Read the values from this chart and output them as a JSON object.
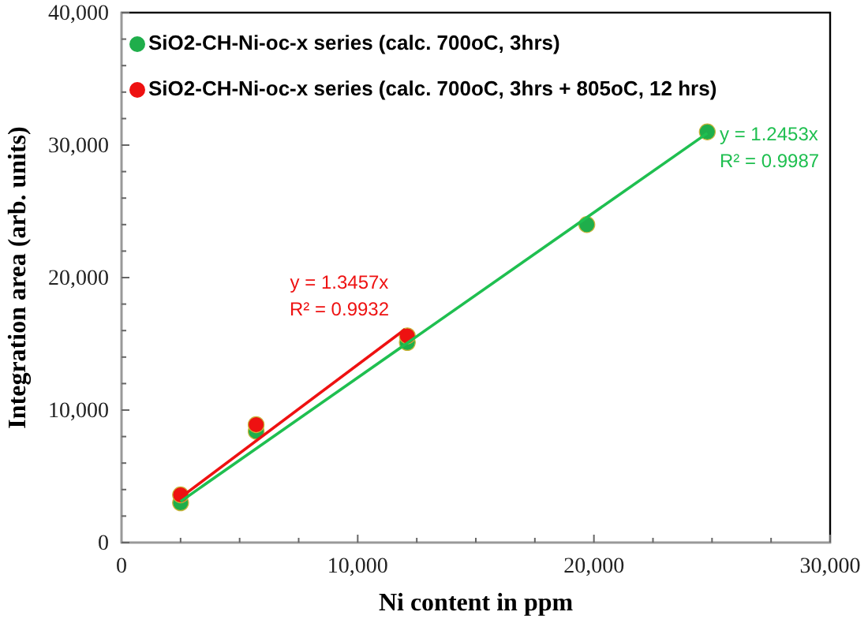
{
  "chart_data": {
    "type": "scatter",
    "xlabel": "Ni content in ppm",
    "ylabel": "Integration area (arb. units)",
    "xlim": [
      0,
      30000
    ],
    "ylim": [
      0,
      40000
    ],
    "xticks": [
      {
        "value": 0,
        "label": "0"
      },
      {
        "value": 2500,
        "label": null
      },
      {
        "value": 5000,
        "label": null
      },
      {
        "value": 7500,
        "label": null
      },
      {
        "value": 10000,
        "label": "10,000"
      },
      {
        "value": 12500,
        "label": null
      },
      {
        "value": 15000,
        "label": null
      },
      {
        "value": 17500,
        "label": null
      },
      {
        "value": 20000,
        "label": "20,000"
      },
      {
        "value": 22500,
        "label": null
      },
      {
        "value": 25000,
        "label": null
      },
      {
        "value": 27500,
        "label": null
      },
      {
        "value": 30000,
        "label": "30,000"
      }
    ],
    "yticks": [
      {
        "value": 0,
        "label": "0"
      },
      {
        "value": 2000,
        "label": null
      },
      {
        "value": 4000,
        "label": null
      },
      {
        "value": 6000,
        "label": null
      },
      {
        "value": 8000,
        "label": null
      },
      {
        "value": 10000,
        "label": "10,000"
      },
      {
        "value": 12000,
        "label": null
      },
      {
        "value": 14000,
        "label": null
      },
      {
        "value": 16000,
        "label": null
      },
      {
        "value": 18000,
        "label": null
      },
      {
        "value": 20000,
        "label": "20,000"
      },
      {
        "value": 22000,
        "label": null
      },
      {
        "value": 24000,
        "label": null
      },
      {
        "value": 26000,
        "label": null
      },
      {
        "value": 28000,
        "label": null
      },
      {
        "value": 30000,
        "label": "30,000"
      },
      {
        "value": 32000,
        "label": null
      },
      {
        "value": 34000,
        "label": null
      },
      {
        "value": 36000,
        "label": null
      },
      {
        "value": 38000,
        "label": null
      },
      {
        "value": 40000,
        "label": "40,000"
      }
    ],
    "grid": false,
    "legend": "top left",
    "marker": "circle",
    "series": [
      {
        "name": "SiO2-CH-Ni-oc-x  series (calc. 700oC, 3hrs)",
        "color": "#1fae4b",
        "x": [
          2500,
          5700,
          12100,
          19700,
          24800
        ],
        "values": [
          3000,
          8400,
          15100,
          24000,
          31000
        ]
      },
      {
        "name": "SiO2-CH-Ni-oc-x  series (calc. 700oC, 3hrs + 805oC, 12 hrs)",
        "color": "#ee1111",
        "x": [
          2500,
          5700,
          12100
        ],
        "values": [
          3600,
          8900,
          15600
        ]
      },
      {
        "type": "line",
        "color": "#1fbf50",
        "marker": "none",
        "x": [
          2500,
          24800
        ],
        "values": [
          3100,
          30900
        ]
      },
      {
        "type": "line",
        "color": "#ee1111",
        "marker": "none",
        "x": [
          2500,
          12000
        ],
        "values": [
          3400,
          16100
        ]
      }
    ],
    "annotations": [
      "y = 1.3457x",
      "R² = 0.9932",
      "y = 1.2453x",
      "R² = 0.9987"
    ]
  }
}
